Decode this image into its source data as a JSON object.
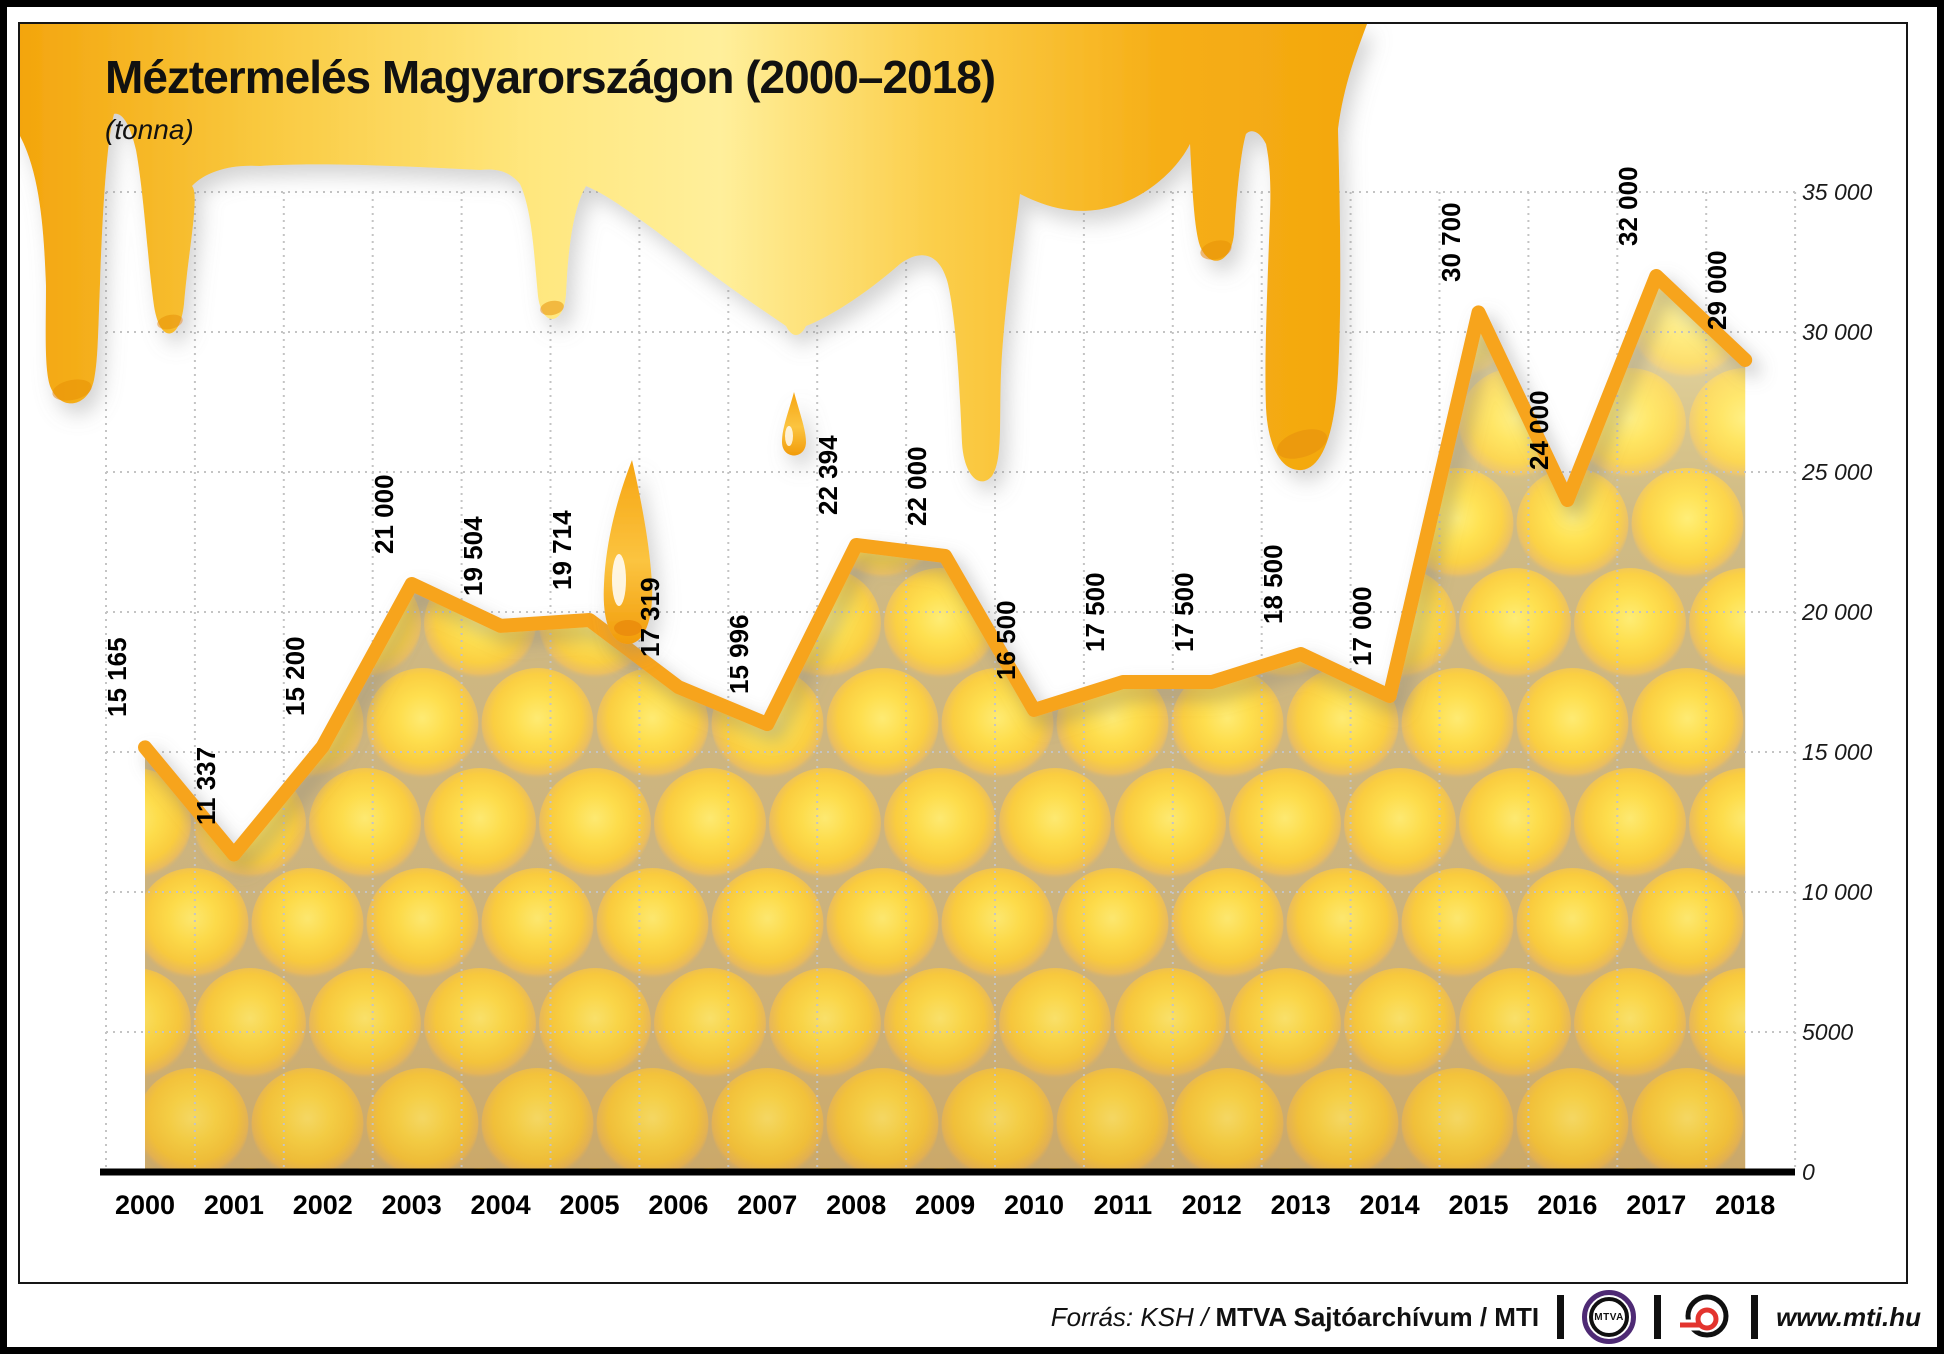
{
  "header": {
    "title": "Méztermelés Magyarországon (2000–2018)",
    "subtitle": "(tonna)"
  },
  "chart_data": {
    "type": "area",
    "title": "Méztermelés Magyarországon (2000–2018)",
    "unit": "tonna",
    "categories": [
      "2000",
      "2001",
      "2002",
      "2003",
      "2004",
      "2005",
      "2006",
      "2007",
      "2008",
      "2009",
      "2010",
      "2011",
      "2012",
      "2013",
      "2014",
      "2015",
      "2016",
      "2017",
      "2018"
    ],
    "values": [
      15165,
      11337,
      15200,
      21000,
      19504,
      19714,
      17319,
      15996,
      22394,
      22000,
      16500,
      17500,
      17500,
      18500,
      17000,
      30700,
      24000,
      32000,
      29000
    ],
    "value_labels": [
      "15 165",
      "11 337",
      "15 200",
      "21 000",
      "19 504",
      "19 714",
      "17 319",
      "15 996",
      "22 394",
      "22 000",
      "16 500",
      "17 500",
      "17 500",
      "18 500",
      "17 000",
      "30 700",
      "24 000",
      "32 000",
      "29 000"
    ],
    "ylim": [
      0,
      35000
    ],
    "y_ticks": [
      {
        "value": 0,
        "label": "0"
      },
      {
        "value": 5000,
        "label": "5000"
      },
      {
        "value": 10000,
        "label": "10 000"
      },
      {
        "value": 15000,
        "label": "15 000"
      },
      {
        "value": 20000,
        "label": "20 000"
      },
      {
        "value": 25000,
        "label": "25 000"
      },
      {
        "value": 30000,
        "label": "30 000"
      },
      {
        "value": 35000,
        "label": "35 000"
      }
    ],
    "y_axis_side": "right",
    "grid": "dotted",
    "legend": "none",
    "xlabel": "",
    "ylabel": ""
  },
  "colors": {
    "line": "#F7A41D",
    "honey_dark": "#F0A106",
    "honey_light": "#FFF09B",
    "cell_yellow": "#FFDD45",
    "cell_gap": "#C9B383",
    "grid": "#c4c4c4",
    "axis": "#000000",
    "mtva_purple": "#4e2a74",
    "mti_red": "#E3342E"
  },
  "footer": {
    "source_regular": "Forrás: KSH / ",
    "source_bold": "MTVA Sajtóarchívum / MTI",
    "mtva_label": "MTVA",
    "url": "www.mti.hu"
  }
}
